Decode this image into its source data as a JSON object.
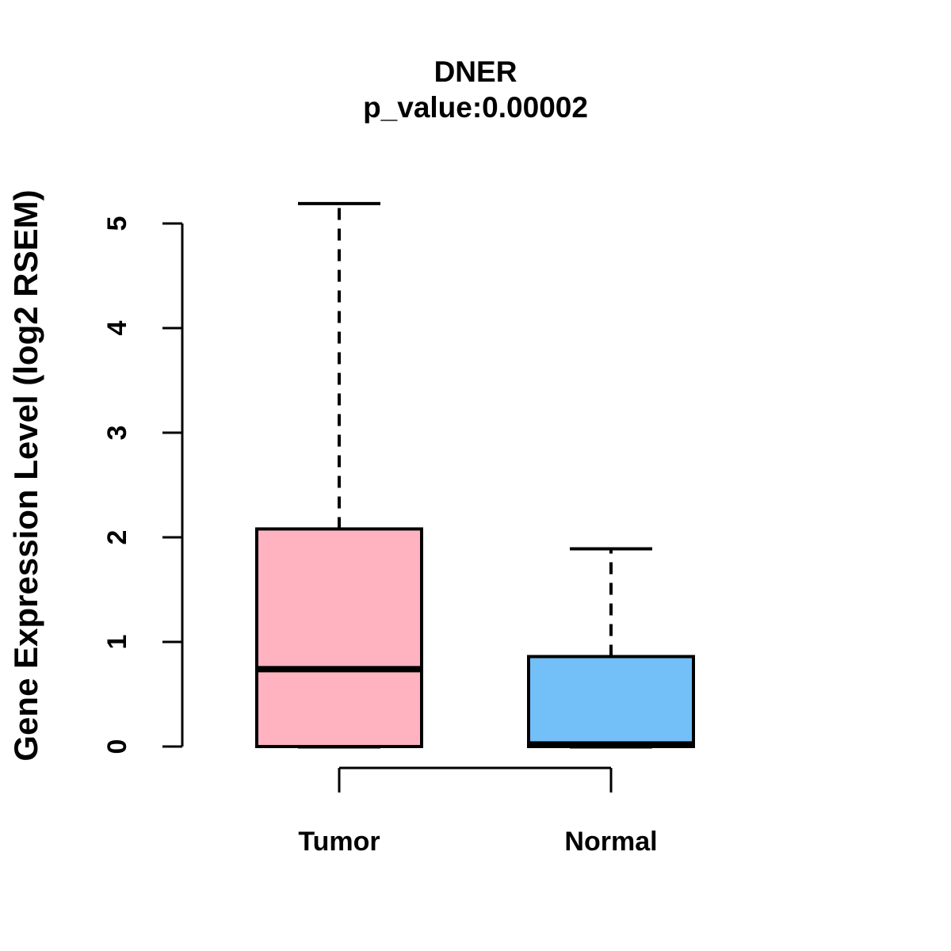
{
  "chart_data": {
    "type": "boxplot",
    "title": "DNER",
    "subtitle": "p_value:0.00002",
    "ylabel": "Gene Expression Level (log2 RSEM)",
    "xlabel": "",
    "ylim": [
      0,
      5
    ],
    "yticks": [
      0,
      1,
      2,
      3,
      4,
      5
    ],
    "categories": [
      "Tumor",
      "Normal"
    ],
    "series": [
      {
        "name": "Tumor",
        "whisker_low": 0,
        "q1": 0,
        "median": 0.74,
        "q3": 2.08,
        "whisker_high": 5.19,
        "color": "#ffb3c1"
      },
      {
        "name": "Normal",
        "whisker_low": 0,
        "q1": 0,
        "median": 0.02,
        "q3": 0.86,
        "whisker_high": 1.89,
        "color": "#73bff7"
      }
    ],
    "layout_hints": {
      "grid": false,
      "legend": "none",
      "box_border_color": "#000000",
      "median_color": "#000000",
      "whisker_style": "dashed",
      "background": "#ffffff",
      "x_axis_bracket": true
    }
  }
}
